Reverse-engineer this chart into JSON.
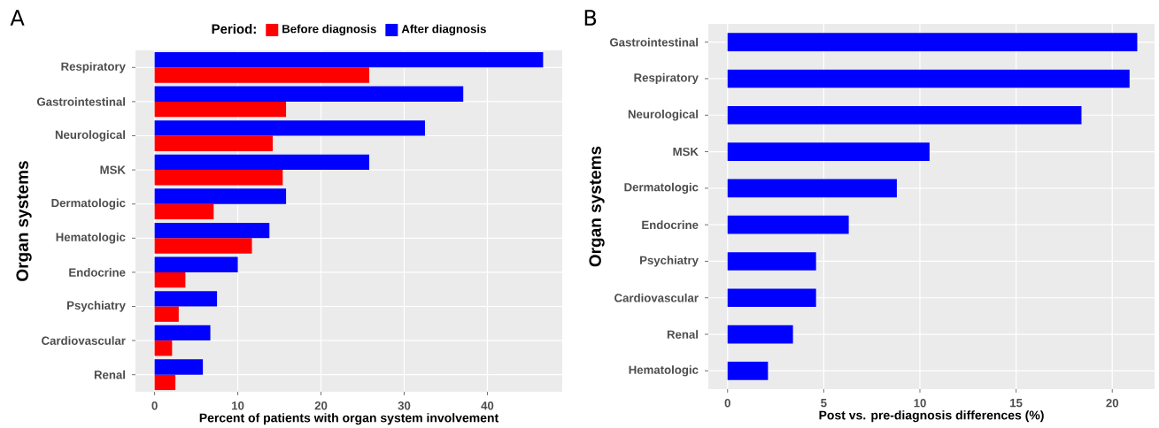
{
  "chart_data": [
    {
      "type": "bar",
      "orientation": "horizontal",
      "title": "A",
      "xlabel": "Percent of patients with organ system involvement",
      "ylabel": "Organ systems",
      "legend_title": "Period:",
      "legend": "top",
      "grid": true,
      "categories": [
        "Respiratory",
        "Gastrointestinal",
        "Neurological",
        "MSK",
        "Dermatologic",
        "Hematologic",
        "Endocrine",
        "Psychiatry",
        "Cardiovascular",
        "Renal"
      ],
      "series": [
        {
          "name": "Before diagnosis",
          "color": "#ff0000",
          "values": [
            25.8,
            15.8,
            14.2,
            15.4,
            7.1,
            11.7,
            3.7,
            2.9,
            2.1,
            2.5
          ]
        },
        {
          "name": "After diagnosis",
          "color": "#0000ff",
          "values": [
            46.7,
            37.1,
            32.5,
            25.8,
            15.8,
            13.8,
            10.0,
            7.5,
            6.7,
            5.8
          ]
        }
      ],
      "xlim": [
        -2.3,
        49
      ],
      "xticks": [
        0,
        10,
        20,
        30,
        40
      ]
    },
    {
      "type": "bar",
      "orientation": "horizontal",
      "title": "B",
      "xlabel": "Post vs. pre-diagnosis differences (%)",
      "ylabel": "Organ systems",
      "grid": true,
      "categories": [
        "Gastrointestinal",
        "Respiratory",
        "Neurological",
        "MSK",
        "Dermatologic",
        "Endocrine",
        "Psychiatry",
        "Cardiovascular",
        "Renal",
        "Hematologic"
      ],
      "series": [
        {
          "color": "#0000ff",
          "values": [
            21.3,
            20.9,
            18.4,
            10.5,
            8.8,
            6.3,
            4.6,
            4.6,
            3.4,
            2.1
          ]
        }
      ],
      "xlim": [
        -1.0,
        22.2
      ],
      "xticks": [
        0,
        5,
        10,
        15,
        20
      ]
    }
  ]
}
